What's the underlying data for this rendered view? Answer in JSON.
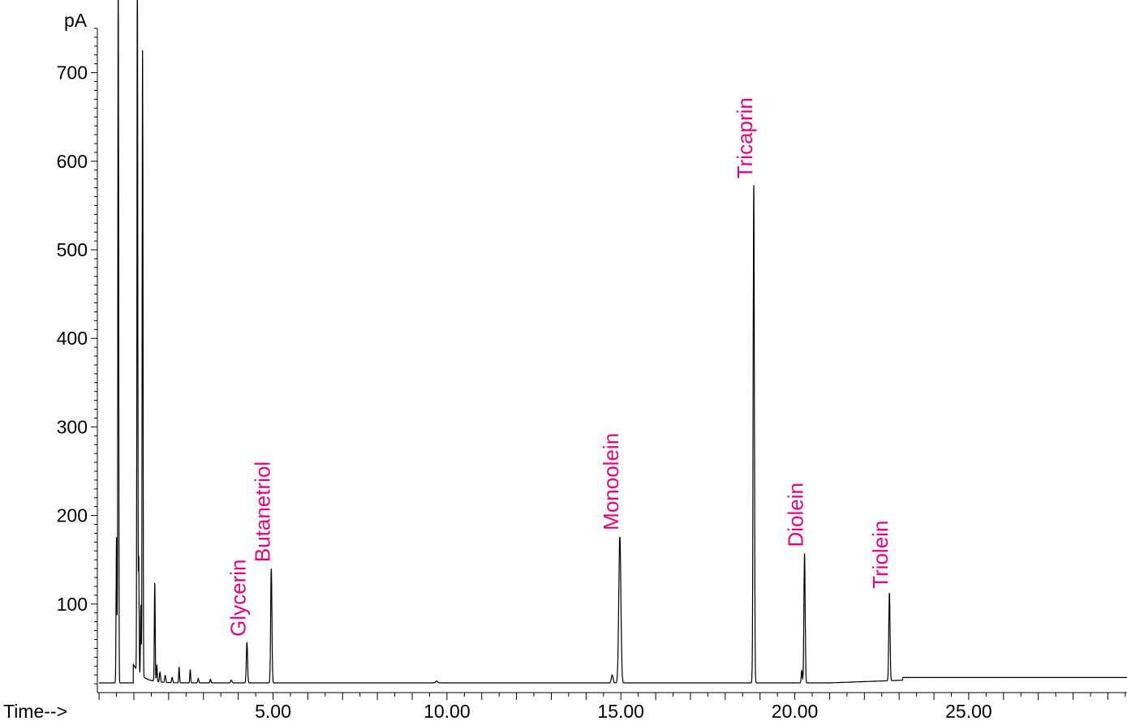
{
  "chart_data": {
    "type": "line",
    "ylabel": "pA",
    "xlabel": "Time-->",
    "xlim": [
      -0.05,
      29.55
    ],
    "ylim": [
      0,
      750
    ],
    "x_ticks": [
      5,
      10,
      15,
      20,
      25
    ],
    "x_tick_labels": [
      "5.00",
      "10.00",
      "15.00",
      "20.00",
      "25.00"
    ],
    "y_ticks": [
      100,
      200,
      300,
      400,
      500,
      600,
      700
    ],
    "y_tick_labels": [
      "100",
      "200",
      "300",
      "400",
      "500",
      "600",
      "700"
    ],
    "grid": false,
    "line_color": "#000000",
    "label_color": "#e6007e",
    "baseline": 11,
    "peaks": [
      {
        "name": "Glycerin",
        "x": 4.25,
        "y": 56
      },
      {
        "name": "Butanetriol",
        "x": 4.95,
        "y": 140
      },
      {
        "name": "Monoolein",
        "x": 14.97,
        "y": 176
      },
      {
        "name": "Tricaprin",
        "x": 18.82,
        "y": 573
      },
      {
        "name": "Diolein",
        "x": 20.28,
        "y": 157
      },
      {
        "name": "Triolein",
        "x": 22.72,
        "y": 110
      }
    ],
    "solvent_peaks": [
      {
        "x": 0.5,
        "y": 175
      },
      {
        "x": 0.55,
        "y": 750
      },
      {
        "x": 1.1,
        "y": 750
      },
      {
        "x": 1.25,
        "y": 718
      },
      {
        "x": 1.6,
        "y": 122
      }
    ]
  }
}
